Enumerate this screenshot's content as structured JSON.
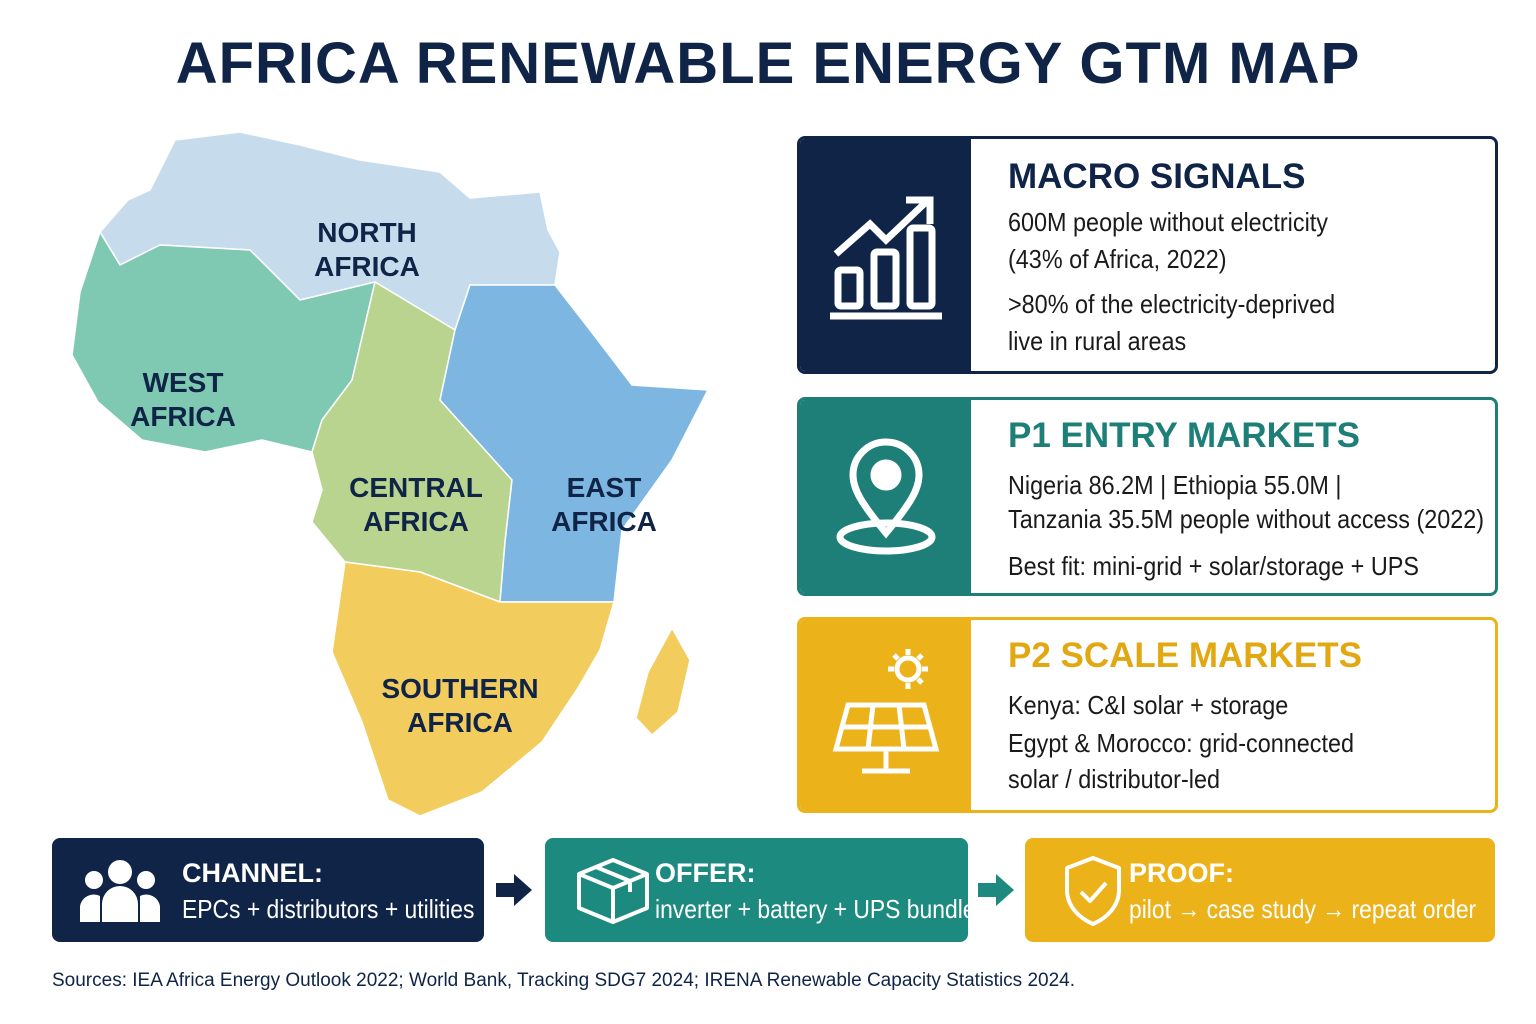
{
  "title": "AFRICA RENEWABLE ENERGY GTM MAP",
  "map": {
    "regions": [
      {
        "label": [
          "NORTH",
          "AFRICA"
        ]
      },
      {
        "label": [
          "WEST",
          "AFRICA"
        ]
      },
      {
        "label": [
          "CENTRAL",
          "AFRICA"
        ]
      },
      {
        "label": [
          "EAST",
          "AFRICA"
        ]
      },
      {
        "label": [
          "SOUTHERN",
          "AFRICA"
        ]
      }
    ]
  },
  "cards": [
    {
      "heading": "MACRO SIGNALS",
      "paragraphs": [
        [
          "600M people without electricity",
          "(43% of Africa, 2022)"
        ],
        [
          ">80% of the electricity-deprived",
          "live in rural areas"
        ]
      ]
    },
    {
      "heading": "P1 ENTRY MARKETS",
      "paragraphs": [
        [
          "Nigeria 86.2M | Ethiopia 55.0M |",
          "Tanzania 35.5M people without access (2022)"
        ],
        [
          "Best fit: mini-grid + solar/storage + UPS"
        ]
      ]
    },
    {
      "heading": "P2 SCALE MARKETS",
      "paragraphs": [
        [
          "Kenya: C&I solar + storage",
          "Egypt & Morocco: grid-connected",
          "solar / distributor-led"
        ]
      ]
    }
  ],
  "steps": [
    {
      "heading": "CHANNEL:",
      "text": "EPCs + distributors + utilities"
    },
    {
      "heading": "OFFER:",
      "text": "inverter + battery + UPS bundles"
    },
    {
      "heading": "PROOF:",
      "text": "pilot → case study → repeat order"
    }
  ],
  "footer": "Sources: IEA Africa Energy Outlook 2022; World Bank, Tracking SDG7 2024; IRENA Renewable Capacity Statistics 2024."
}
